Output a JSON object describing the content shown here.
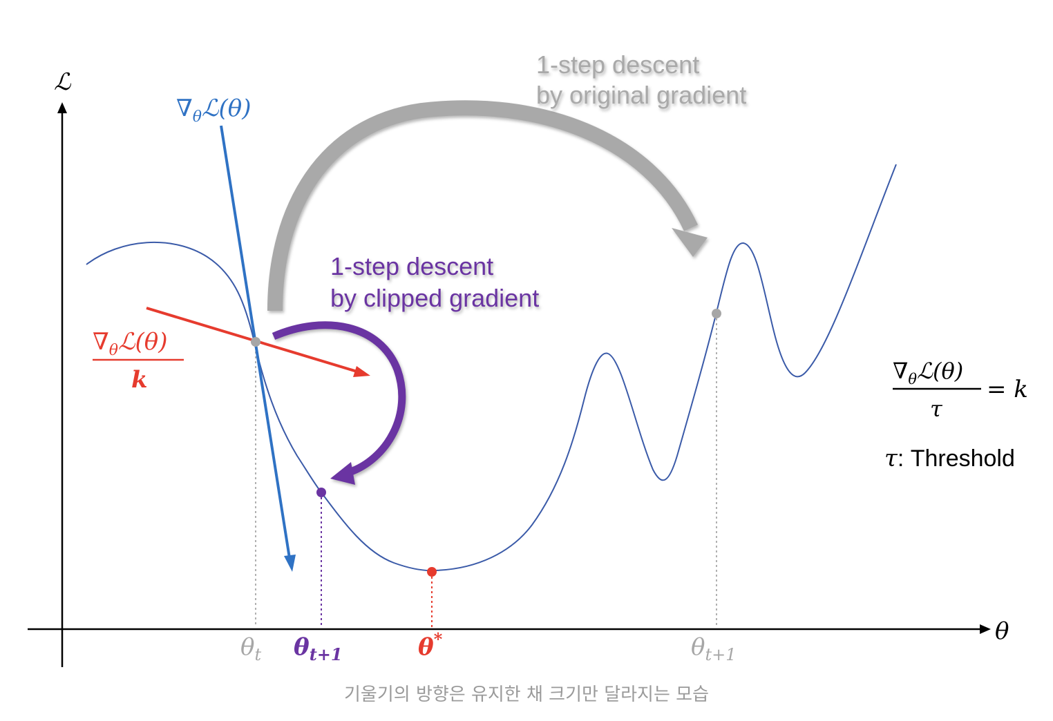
{
  "axes": {
    "y_label": "ℒ",
    "x_label": "θ"
  },
  "gradient_label": {
    "nabla": "∇",
    "sub": "θ",
    "rest": "ℒ(θ)"
  },
  "clipped_gradient_label": {
    "nabla": "∇",
    "sub": "θ",
    "rest": "ℒ(θ)",
    "denominator": "k"
  },
  "original_step_label": {
    "line1": "1-step descent",
    "line2": "by original gradient"
  },
  "clipped_step_label": {
    "line1": "1-step descent",
    "line2": "by clipped gradient"
  },
  "points": {
    "theta_t": {
      "base": "θ",
      "sub": "t"
    },
    "theta_t1_clipped": {
      "base": "θ",
      "sub": "t+1"
    },
    "theta_star": {
      "base": "θ",
      "sup": "*"
    },
    "theta_t1_original": {
      "base": "θ",
      "sub": "t+1"
    }
  },
  "formula": {
    "nabla": "∇",
    "sub": "θ",
    "rest": "ℒ(θ)",
    "denominator": "τ",
    "rhs": "= k",
    "tau_symbol": "τ",
    "tau_text": ": Threshold"
  },
  "caption": "기울기의 방향은 유지한 채 크기만 달라지는 모습",
  "colors": {
    "curve": "#3a5aa8",
    "gradient": "#2f72c4",
    "clipped": "#e63b2e",
    "purple": "#6a34a2",
    "gray": "#a6a6a6",
    "axis": "#000000",
    "caption": "#9a9a9a"
  }
}
